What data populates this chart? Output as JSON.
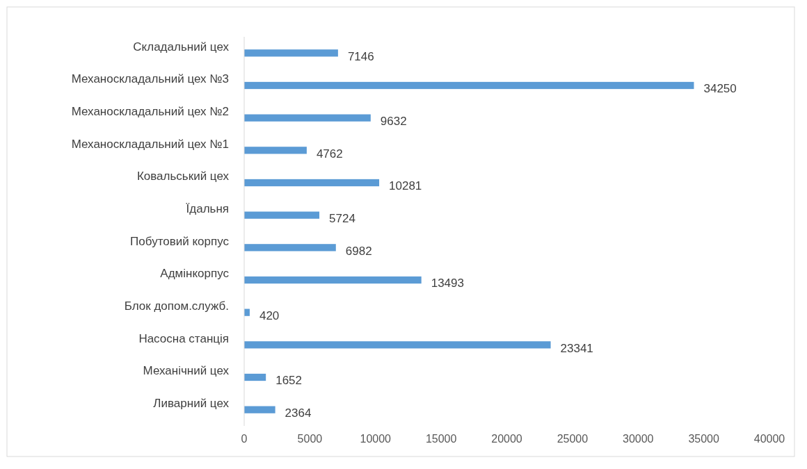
{
  "chart_data": {
    "type": "bar",
    "orientation": "horizontal",
    "categories": [
      "Складальний цех",
      "Механоскладальний цех №3",
      "Механоскладальний цех №2",
      "Механоскладальний цех №1",
      "Ковальський цех",
      "Їдальня",
      "Побутовий корпус",
      "Адмінкорпус",
      "Блок допом.служб.",
      "Насосна станція",
      "Механічний цех",
      "Ливарний цех"
    ],
    "values": [
      7146,
      34250,
      9632,
      4762,
      10281,
      5724,
      6982,
      13493,
      420,
      23341,
      1652,
      2364
    ],
    "color": "#5b9bd5",
    "xlim": [
      0,
      40000
    ],
    "xticks": [
      0,
      5000,
      10000,
      15000,
      20000,
      25000,
      30000,
      35000,
      40000
    ],
    "data_labels": true,
    "grid": false
  }
}
